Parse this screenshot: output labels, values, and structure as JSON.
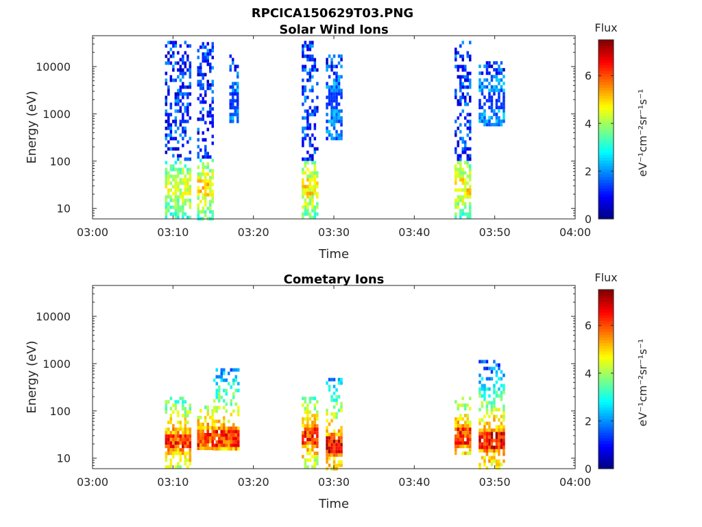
{
  "figure_title": "RPCICA150629T03.PNG",
  "chart_data": [
    {
      "type": "heatmap",
      "title": "Solar Wind Ions",
      "xlabel": "Time",
      "ylabel": "Energy (eV)",
      "x_range": [
        "03:00",
        "04:00"
      ],
      "x_ticks": [
        "03:00",
        "03:10",
        "03:20",
        "03:30",
        "03:40",
        "03:50",
        "04:00"
      ],
      "y_scale": "log",
      "y_range": [
        6,
        45000
      ],
      "y_ticks": [
        "10",
        "100",
        "1000",
        "10000"
      ],
      "colorbar": {
        "label": "Flux",
        "units": "eV⁻¹cm⁻²sr⁻¹s⁻¹",
        "range": [
          0,
          7.5
        ],
        "ticks": [
          "0",
          "2",
          "4",
          "6"
        ]
      },
      "bursts": [
        {
          "t_start": "03:09",
          "t_end": "03:12",
          "e_min": 6,
          "e_max": 35000,
          "peak_flux": 5,
          "peak_energy": 30
        },
        {
          "t_start": "03:13",
          "t_end": "03:15",
          "e_min": 6,
          "e_max": 33000,
          "peak_flux": 5.5,
          "peak_energy": 30
        },
        {
          "t_start": "03:17",
          "t_end": "03:18",
          "e_min": 700,
          "e_max": 18000,
          "peak_flux": 1.5,
          "peak_energy": 2000
        },
        {
          "t_start": "03:26",
          "t_end": "03:28",
          "e_min": 6,
          "e_max": 35000,
          "peak_flux": 5.5,
          "peak_energy": 30
        },
        {
          "t_start": "03:29",
          "t_end": "03:31",
          "e_min": 300,
          "e_max": 18000,
          "peak_flux": 1.5,
          "peak_energy": 2000
        },
        {
          "t_start": "03:45",
          "t_end": "03:47",
          "e_min": 6,
          "e_max": 35000,
          "peak_flux": 5.5,
          "peak_energy": 30
        },
        {
          "t_start": "03:48",
          "t_end": "03:51",
          "e_min": 600,
          "e_max": 13000,
          "peak_flux": 1.5,
          "peak_energy": 2000
        }
      ]
    },
    {
      "type": "heatmap",
      "title": "Cometary Ions",
      "xlabel": "Time",
      "ylabel": "Energy (eV)",
      "x_range": [
        "03:00",
        "04:00"
      ],
      "x_ticks": [
        "03:00",
        "03:10",
        "03:20",
        "03:30",
        "03:40",
        "03:50",
        "04:00"
      ],
      "y_scale": "log",
      "y_range": [
        6,
        45000
      ],
      "y_ticks": [
        "10",
        "100",
        "1000",
        "10000"
      ],
      "colorbar": {
        "label": "Flux",
        "units": "eV⁻¹cm⁻²sr⁻¹s⁻¹",
        "range": [
          0,
          7.5
        ],
        "ticks": [
          "0",
          "2",
          "4",
          "6"
        ]
      },
      "bursts": [
        {
          "t_start": "03:09",
          "t_end": "03:12",
          "e_min": 6,
          "e_max": 200,
          "peak_flux": 7,
          "peak_energy": 25
        },
        {
          "t_start": "03:13",
          "t_end": "03:15",
          "e_min": 15,
          "e_max": 130,
          "peak_flux": 7,
          "peak_energy": 30
        },
        {
          "t_start": "03:15",
          "t_end": "03:18",
          "e_min": 15,
          "e_max": 800,
          "peak_flux": 7,
          "peak_energy": 30
        },
        {
          "t_start": "03:26",
          "t_end": "03:28",
          "e_min": 6,
          "e_max": 200,
          "peak_flux": 7,
          "peak_energy": 30
        },
        {
          "t_start": "03:29",
          "t_end": "03:31",
          "e_min": 6,
          "e_max": 500,
          "peak_flux": 7.5,
          "peak_energy": 20
        },
        {
          "t_start": "03:45",
          "t_end": "03:47",
          "e_min": 12,
          "e_max": 200,
          "peak_flux": 7,
          "peak_energy": 30
        },
        {
          "t_start": "03:48",
          "t_end": "03:51",
          "e_min": 6,
          "e_max": 1200,
          "peak_flux": 7.5,
          "peak_energy": 25
        }
      ]
    }
  ]
}
